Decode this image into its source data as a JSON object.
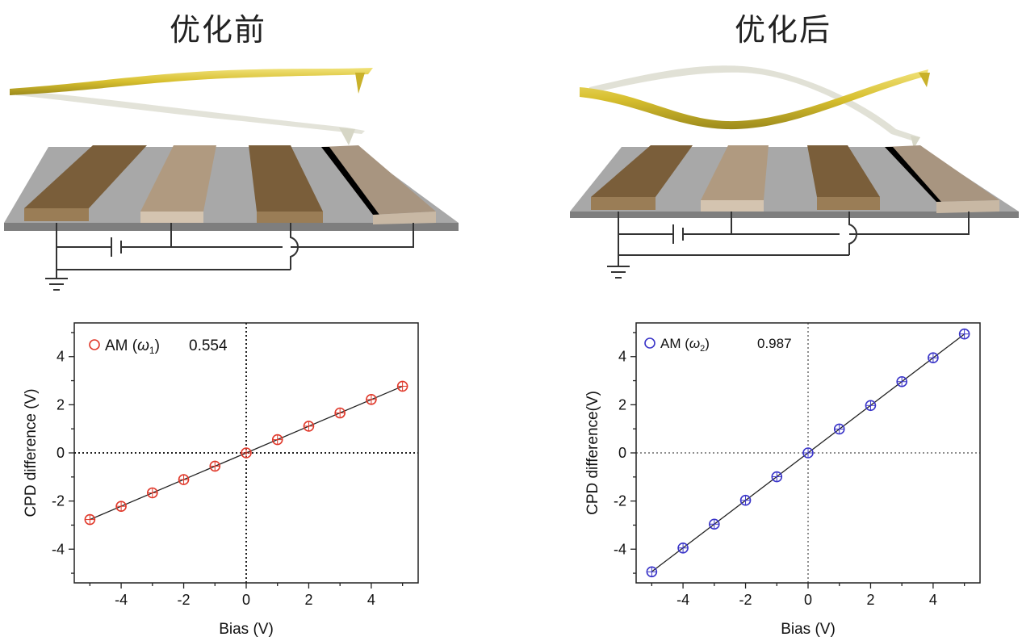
{
  "panels": {
    "left": {
      "title": "优化前",
      "chart": {
        "legend_label": "AM",
        "legend_omega": "ω",
        "legend_sub": "1",
        "slope_value": "0.554"
      }
    },
    "right": {
      "title": "优化后",
      "chart": {
        "legend_label": "AM",
        "legend_omega": "ω",
        "legend_sub": "2",
        "slope_value": "0.987"
      }
    }
  },
  "colors": {
    "left_marker": "#e0392b",
    "right_marker": "#3a35c8",
    "electrode_dark": "#8a6d44",
    "electrode_light": "#b59f86",
    "substrate": "#a8a8a8",
    "cantilever_gold": "#d9c33a"
  },
  "chart_data": [
    {
      "type": "scatter",
      "xlabel": "Bias (V)",
      "ylabel": "CPD difference (V)",
      "xlim": [
        -5.5,
        5.5
      ],
      "ylim": [
        -5.4,
        5.4
      ],
      "x_ticks": [
        -4,
        -2,
        0,
        2,
        4
      ],
      "y_ticks": [
        -4,
        -2,
        0,
        2,
        4
      ],
      "series": [
        {
          "name": "AM (ω1)",
          "x": [
            -5,
            -4,
            -3,
            -2,
            -1,
            0,
            1,
            2,
            3,
            4,
            5
          ],
          "y": [
            -2.77,
            -2.22,
            -1.66,
            -1.11,
            -0.55,
            0,
            0.55,
            1.11,
            1.66,
            2.22,
            2.77
          ],
          "fit_slope": 0.554
        }
      ]
    },
    {
      "type": "scatter",
      "xlabel": "Bias (V)",
      "ylabel": "CPD difference(V)",
      "xlim": [
        -5.5,
        5.5
      ],
      "ylim": [
        -5.4,
        5.4
      ],
      "x_ticks": [
        -4,
        -2,
        0,
        2,
        4
      ],
      "y_ticks": [
        -4,
        -2,
        0,
        2,
        4
      ],
      "series": [
        {
          "name": "AM (ω2)",
          "x": [
            -5,
            -4,
            -3,
            -2,
            -1,
            0,
            1,
            2,
            3,
            4,
            5
          ],
          "y": [
            -4.94,
            -3.95,
            -2.96,
            -1.97,
            -0.99,
            0,
            0.99,
            1.97,
            2.96,
            3.95,
            4.94
          ],
          "fit_slope": 0.987
        }
      ]
    }
  ]
}
